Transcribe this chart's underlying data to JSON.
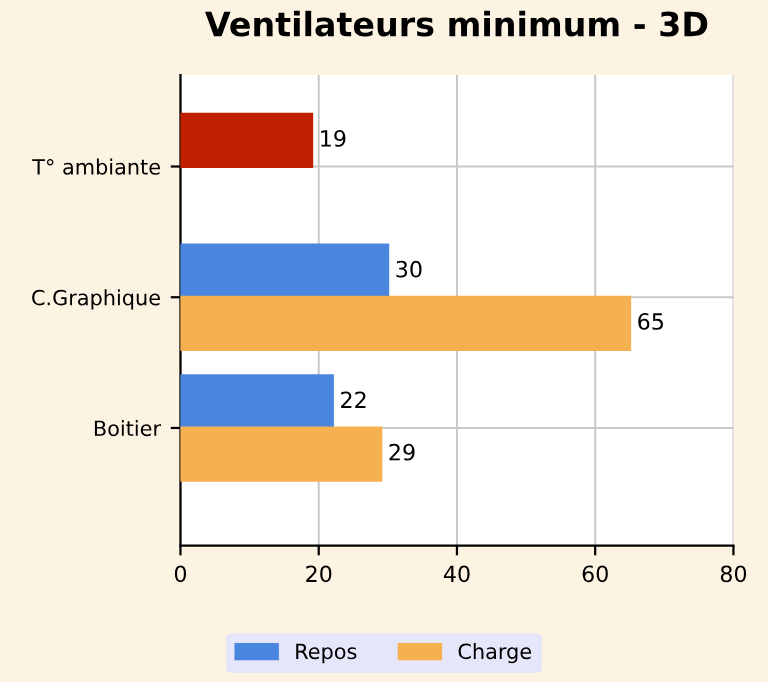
{
  "chart_data": {
    "type": "bar",
    "orientation": "horizontal",
    "title": "Ventilateurs minimum - 3D",
    "categories": [
      "T° ambiante",
      "C.Graphique",
      "Boitier"
    ],
    "series": [
      {
        "name": "Repos",
        "color": "#4a86e0",
        "colors": [
          "#c02000",
          "#4a86e0",
          "#4a86e0"
        ],
        "values": [
          19,
          30,
          22
        ]
      },
      {
        "name": "Charge",
        "color": "#f5b050",
        "values": [
          null,
          65,
          29
        ]
      }
    ],
    "xlim": [
      0,
      80
    ],
    "xticks": [
      0,
      20,
      40,
      60,
      80
    ],
    "grid": true,
    "legend": "bottom",
    "data_labels": true
  }
}
